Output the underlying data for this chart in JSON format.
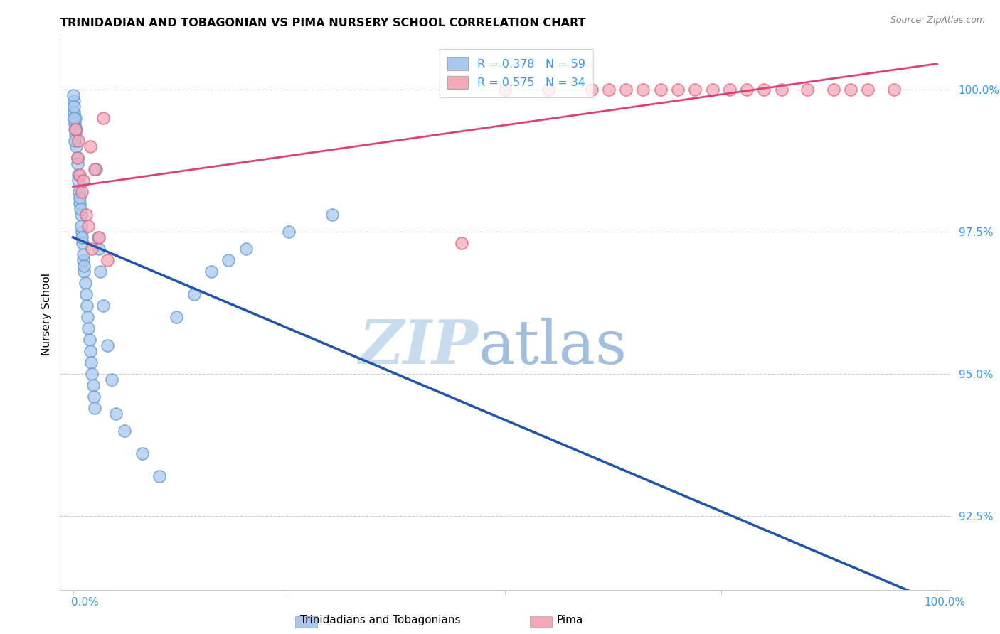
{
  "title": "TRINIDADIAN AND TOBAGONIAN VS PIMA NURSERY SCHOOL CORRELATION CHART",
  "source": "Source: ZipAtlas.com",
  "ylabel": "Nursery School",
  "yticks": [
    92.5,
    95.0,
    97.5,
    100.0
  ],
  "ytick_labels": [
    "92.5%",
    "95.0%",
    "97.5%",
    "100.0%"
  ],
  "blue_R": 0.378,
  "blue_N": 59,
  "pink_R": 0.575,
  "pink_N": 34,
  "blue_color": "#A8C8F0",
  "pink_color": "#F5A8B8",
  "blue_edge_color": "#6699CC",
  "pink_edge_color": "#E06080",
  "blue_line_color": "#2255AA",
  "pink_line_color": "#E0407A",
  "legend_color": "#3399FF",
  "legend_blue_label": "Trinidadians and Tobagonians",
  "legend_pink_label": "Pima",
  "watermark_zip_color": "#C8DCF0",
  "watermark_atlas_color": "#A0BEDD",
  "background_color": "#ffffff",
  "grid_color": "#CCCCCC",
  "axis_color": "#CCCCCC",
  "blue_x": [
    0.1,
    0.2,
    0.3,
    0.4,
    0.5,
    0.6,
    0.7,
    0.8,
    0.9,
    1.0,
    1.1,
    1.2,
    1.3,
    1.4,
    1.5,
    1.6,
    1.7,
    1.8,
    1.9,
    2.0,
    2.1,
    2.2,
    2.3,
    2.4,
    2.5,
    2.7,
    2.9,
    3.0,
    3.2,
    3.5,
    4.0,
    4.5,
    5.0,
    0.15,
    0.25,
    0.35,
    0.55,
    0.65,
    0.75,
    0.85,
    0.95,
    1.05,
    1.15,
    1.25,
    0.05,
    0.08,
    0.12,
    0.18,
    0.22,
    6.0,
    8.0,
    10.0,
    12.0,
    14.0,
    16.0,
    18.0,
    20.0,
    25.0,
    30.0
  ],
  "blue_y": [
    99.6,
    99.4,
    99.2,
    99.0,
    98.8,
    98.5,
    98.2,
    98.0,
    97.8,
    97.5,
    97.3,
    97.0,
    96.8,
    96.6,
    96.4,
    96.2,
    96.0,
    95.8,
    95.6,
    95.4,
    95.2,
    95.0,
    94.8,
    94.6,
    94.4,
    98.6,
    97.4,
    97.2,
    96.8,
    96.2,
    95.5,
    94.9,
    94.3,
    99.8,
    99.5,
    99.3,
    98.7,
    98.4,
    98.1,
    97.9,
    97.6,
    97.4,
    97.1,
    96.9,
    99.9,
    99.7,
    99.5,
    99.3,
    99.1,
    94.0,
    93.6,
    93.2,
    96.0,
    96.4,
    96.8,
    97.0,
    97.2,
    97.5,
    97.8
  ],
  "pink_x": [
    0.3,
    0.5,
    0.8,
    1.0,
    1.5,
    2.0,
    2.5,
    3.0,
    3.5,
    4.0,
    0.6,
    1.2,
    1.8,
    2.2,
    45.0,
    50.0,
    55.0,
    60.0,
    62.0,
    64.0,
    66.0,
    68.0,
    70.0,
    72.0,
    74.0,
    76.0,
    78.0,
    80.0,
    82.0,
    85.0,
    88.0,
    90.0,
    92.0,
    95.0
  ],
  "pink_y": [
    99.3,
    98.8,
    98.5,
    98.2,
    97.8,
    99.0,
    98.6,
    97.4,
    99.5,
    97.0,
    99.1,
    98.4,
    97.6,
    97.2,
    97.3,
    100.0,
    100.0,
    100.0,
    100.0,
    100.0,
    100.0,
    100.0,
    100.0,
    100.0,
    100.0,
    100.0,
    100.0,
    100.0,
    100.0,
    100.0,
    100.0,
    100.0,
    100.0,
    100.0
  ]
}
